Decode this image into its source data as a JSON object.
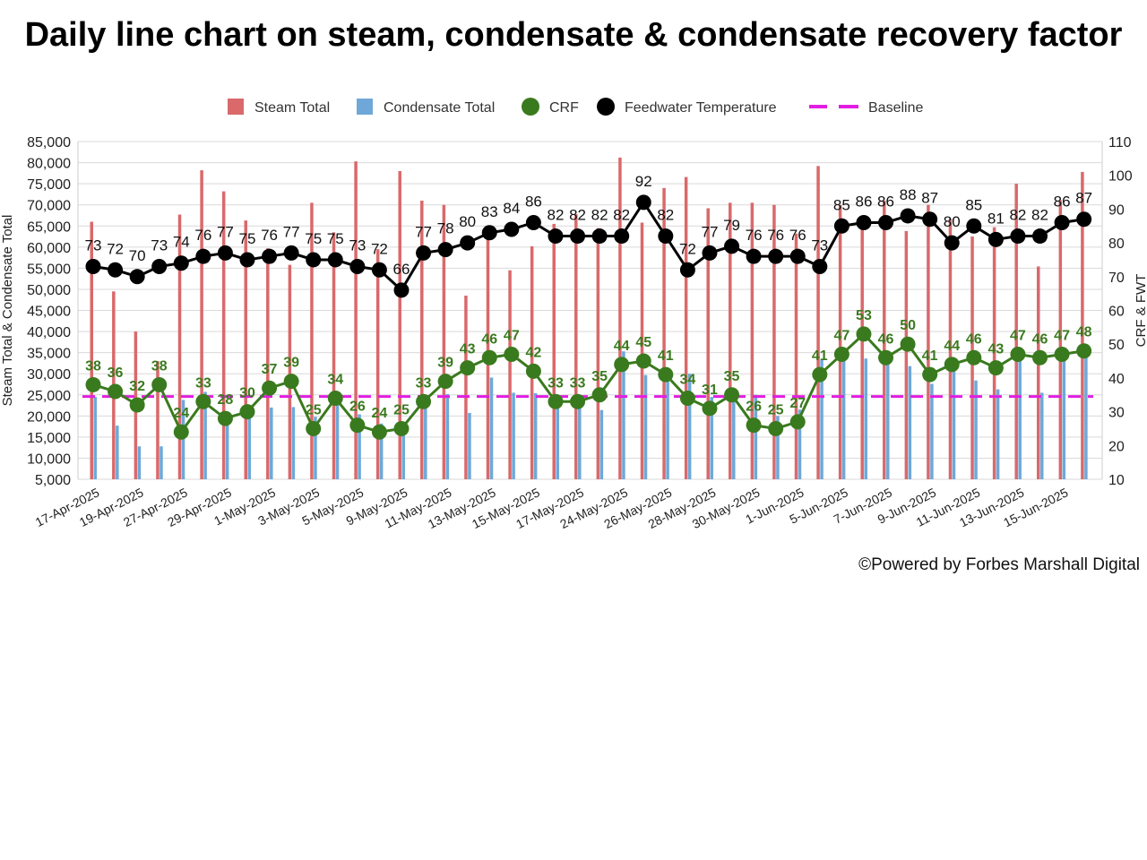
{
  "title": "Daily line chart on steam, condensate & condensate recovery factor",
  "footer": "©Powered by Forbes Marshall Digital",
  "colors": {
    "steam": "#d9696b",
    "condensate": "#6fa8d8",
    "crf": "#3a7a1e",
    "fwt": "#000000",
    "baseline": "#e21ee2",
    "grid": "#d9d9d9"
  },
  "chart_data": {
    "type": "bar+line",
    "legend": [
      "Steam Total",
      "Condensate Total",
      "CRF",
      "Feedwater Temperature",
      "Baseline"
    ],
    "legend_position": "top",
    "ylabel_left": "Steam Total & Condensate Total",
    "ylabel_right": "CRF & FWT",
    "ylim_left": [
      5000,
      85000
    ],
    "ylim_right": [
      10,
      110
    ],
    "yticks_left": [
      "5,000",
      "10,000",
      "15,000",
      "20,000",
      "25,000",
      "30,000",
      "35,000",
      "40,000",
      "45,000",
      "50,000",
      "55,000",
      "60,000",
      "65,000",
      "70,000",
      "75,000",
      "80,000",
      "85,000"
    ],
    "yticks_right": [
      "10",
      "20",
      "30",
      "40",
      "50",
      "60",
      "70",
      "80",
      "90",
      "100",
      "110"
    ],
    "x_tick_labels": [
      "17-Apr-2025",
      "19-Apr-2025",
      "27-Apr-2025",
      "29-Apr-2025",
      "1-May-2025",
      "3-May-2025",
      "5-May-2025",
      "9-May-2025",
      "11-May-2025",
      "13-May-2025",
      "15-May-2025",
      "17-May-2025",
      "24-May-2025",
      "26-May-2025",
      "28-May-2025",
      "30-May-2025",
      "1-Jun-2025",
      "5-Jun-2025",
      "7-Jun-2025",
      "9-Jun-2025",
      "11-Jun-2025",
      "13-Jun-2025",
      "15-Jun-2025"
    ],
    "steam": [
      66000,
      49500,
      40000,
      33000,
      67700,
      78200,
      73200,
      66300,
      59700,
      55800,
      70500,
      63500,
      80300,
      59500,
      78000,
      71000,
      70000,
      48500,
      63000,
      54500,
      60200,
      65500,
      67800,
      64500,
      81200,
      65800,
      74000,
      76600,
      69200,
      70500,
      70500,
      70000,
      63200,
      79200,
      70000,
      65000,
      71000,
      63800,
      70000,
      66700,
      62500,
      64700,
      75000,
      55400,
      71100,
      77800
    ],
    "condensate": [
      24500,
      17700,
      12800,
      12800,
      23800,
      25700,
      21000,
      21200,
      22000,
      22100,
      19800,
      25300,
      20400,
      18200,
      18000,
      23500,
      25200,
      20700,
      29100,
      25500,
      25400,
      23200,
      24300,
      21400,
      35300,
      29700,
      29800,
      30000,
      24500,
      25000,
      25000,
      20000,
      21500,
      33300,
      33600,
      33600,
      32200,
      31800,
      27600,
      32300,
      28400,
      26300,
      33100,
      25500,
      33700,
      35000
    ],
    "crf": [
      38,
      36,
      32,
      38,
      24,
      33,
      28,
      30,
      37,
      39,
      25,
      34,
      26,
      24,
      25,
      33,
      39,
      43,
      46,
      47,
      42,
      33,
      33,
      35,
      44,
      45,
      41,
      34,
      31,
      35,
      26,
      25,
      27,
      41,
      47,
      53,
      46,
      50,
      41,
      44,
      46,
      43,
      47,
      46,
      47,
      48
    ],
    "fwt": [
      73,
      72,
      70,
      73,
      74,
      76,
      77,
      75,
      76,
      77,
      75,
      75,
      73,
      72,
      66,
      77,
      78,
      80,
      83,
      84,
      86,
      82,
      82,
      82,
      82,
      92,
      82,
      72,
      77,
      79,
      76,
      76,
      76,
      73,
      85,
      86,
      86,
      88,
      87,
      80,
      85,
      81,
      82,
      82,
      86,
      87
    ],
    "baseline": 34.5
  }
}
